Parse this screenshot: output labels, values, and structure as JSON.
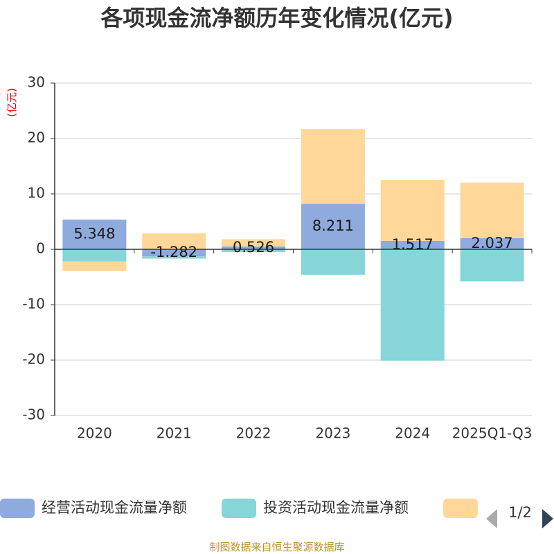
{
  "title": "各项现金流净额历年变化情况(亿元)",
  "source": "制图数据来自恒生聚源数据库",
  "legend": {
    "page_label": "1/2"
  },
  "chart_data": {
    "type": "bar",
    "stacked": true,
    "title": "各项现金流净额历年变化情况(亿元)",
    "ylabel": "(亿元)",
    "ylim": [
      -30,
      30
    ],
    "yticks": [
      30,
      20,
      10,
      0,
      -10,
      -20,
      -30
    ],
    "categories": [
      "2020",
      "2021",
      "2022",
      "2023",
      "2024",
      "2025Q1-Q3"
    ],
    "series": [
      {
        "name": "经营活动现金流量净额",
        "color": "#8faadc",
        "values": [
          5.348,
          -1.282,
          0.526,
          8.211,
          1.517,
          2.037
        ]
      },
      {
        "name": "投资活动现金流量净额",
        "color": "#86d5d8",
        "values": [
          -2.2,
          -0.4,
          -0.5,
          -4.6,
          -20.1,
          -5.8
        ]
      },
      {
        "name": "",
        "color": "#ffd899",
        "values": [
          -1.7,
          2.9,
          1.3,
          13.5,
          11.0,
          10.0
        ]
      }
    ],
    "data_labels": [
      "5.348",
      "-1.282",
      "0.526",
      "8.211",
      "1.517",
      "2.037"
    ]
  }
}
